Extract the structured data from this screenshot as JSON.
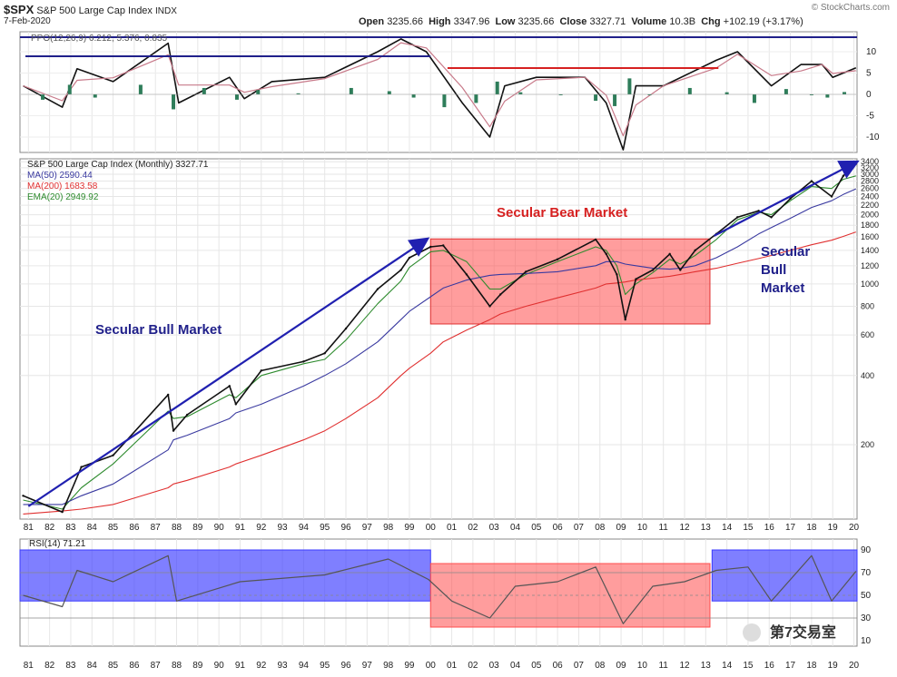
{
  "header": {
    "symbol": "$SPX",
    "name": "S&P 500 Large Cap Index",
    "exchange": "INDX",
    "date": "7-Feb-2020",
    "watermark": "© StockCharts.com",
    "quote": {
      "open_label": "Open",
      "open": "3235.66",
      "high_label": "High",
      "high": "3347.96",
      "low_label": "Low",
      "low": "3235.66",
      "close_label": "Close",
      "close": "3327.71",
      "volume_label": "Volume",
      "volume": "10.3B",
      "chg_label": "Chg",
      "chg": "+102.19 (+3.17%)"
    }
  },
  "ppo_panel": {
    "legend": "PPO(12,26,9) 6.212, 5.376, 0.835",
    "ticks": [
      "10",
      "5",
      "0",
      "-5",
      "-10"
    ]
  },
  "price_panel": {
    "legend": {
      "title": "S&P 500 Large Cap Index (Monthly) 3327.71",
      "ma50": "MA(50) 2590.44",
      "ma200": "MA(200) 1683.58",
      "ema20": "EMA(20) 2949.92"
    },
    "annotations": {
      "bull1": "Secular Bull Market",
      "bear": "Secular Bear Market",
      "bull2_line1": "Secular",
      "bull2_line2": "Bull",
      "bull2_line3": "Market"
    },
    "ticks": [
      "3400",
      "3200",
      "3000",
      "2800",
      "2600",
      "2400",
      "2200",
      "2000",
      "1800",
      "1600",
      "1400",
      "1200",
      "1000",
      "800",
      "600",
      "400",
      "200"
    ]
  },
  "rsi_panel": {
    "legend": "RSI(14) 71.21",
    "ticks": [
      "90",
      "70",
      "50",
      "30",
      "10"
    ]
  },
  "x_labels": [
    "81",
    "82",
    "83",
    "84",
    "85",
    "86",
    "87",
    "88",
    "89",
    "90",
    "91",
    "92",
    "93",
    "94",
    "95",
    "96",
    "97",
    "98",
    "99",
    "00",
    "01",
    "02",
    "03",
    "04",
    "05",
    "06",
    "07",
    "08",
    "09",
    "10",
    "11",
    "12",
    "13",
    "14",
    "15",
    "16",
    "17",
    "18",
    "19",
    "20"
  ],
  "wechat_tag": "第7交易室",
  "chart_data": {
    "type": "line",
    "title": "S&P 500 Large Cap Index (Monthly)",
    "scale": "log",
    "x": [
      1980.75,
      1982.6,
      1983.5,
      1985,
      1987.6,
      1987.85,
      1988.5,
      1990.5,
      1990.8,
      1992,
      1994,
      1995,
      1996,
      1997.5,
      1998.6,
      1999,
      2000.0,
      2000.6,
      2001.7,
      2002.8,
      2003.3,
      2004.5,
      2006,
      2007.8,
      2008.3,
      2008.8,
      2009.2,
      2009.7,
      2010.5,
      2011.3,
      2011.8,
      2012.5,
      2013.5,
      2014.5,
      2015.5,
      2016.1,
      2017,
      2018.0,
      2018.95,
      2019.5,
      2020.1
    ],
    "series": [
      {
        "name": "S&P 500 Large Cap Index",
        "values": [
          120,
          102,
          160,
          180,
          330,
          230,
          270,
          360,
          300,
          420,
          460,
          500,
          640,
          950,
          1150,
          1300,
          1450,
          1470,
          1100,
          800,
          900,
          1130,
          1280,
          1560,
          1350,
          1100,
          700,
          1050,
          1150,
          1350,
          1150,
          1400,
          1650,
          1950,
          2080,
          1950,
          2350,
          2800,
          2400,
          2950,
          3327.71
        ]
      },
      {
        "name": "MA(50)",
        "values": [
          110,
          110,
          120,
          135,
          190,
          210,
          220,
          260,
          275,
          300,
          360,
          400,
          450,
          560,
          700,
          760,
          880,
          960,
          1040,
          1090,
          1100,
          1110,
          1130,
          1200,
          1250,
          1250,
          1220,
          1200,
          1170,
          1160,
          1170,
          1200,
          1300,
          1450,
          1650,
          1760,
          1930,
          2150,
          2300,
          2450,
          2590.44
        ]
      },
      {
        "name": "MA(200)",
        "values": [
          100,
          103,
          105,
          110,
          130,
          135,
          140,
          160,
          165,
          180,
          210,
          230,
          260,
          320,
          400,
          430,
          500,
          560,
          630,
          700,
          740,
          800,
          870,
          960,
          1000,
          1010,
          1020,
          1040,
          1060,
          1080,
          1100,
          1130,
          1170,
          1230,
          1290,
          1330,
          1400,
          1480,
          1550,
          1610,
          1683.58
        ]
      },
      {
        "name": "EMA(20)",
        "values": [
          115,
          105,
          130,
          165,
          280,
          260,
          265,
          330,
          320,
          400,
          450,
          470,
          570,
          820,
          1030,
          1180,
          1380,
          1400,
          1250,
          950,
          950,
          1100,
          1250,
          1450,
          1400,
          1200,
          900,
          1000,
          1120,
          1280,
          1220,
          1330,
          1560,
          1900,
          2050,
          2000,
          2300,
          2650,
          2600,
          2850,
          2949.92
        ]
      }
    ],
    "rsi": {
      "name": "RSI(14)",
      "x": [
        1980.75,
        1982.6,
        1983.3,
        1985,
        1987.6,
        1988,
        1991,
        1995,
        1998,
        1999.9,
        2001,
        2002.8,
        2004,
        2006,
        2007.8,
        2009.1,
        2010.5,
        2012,
        2013.5,
        2015,
        2016.1,
        2018,
        2018.95,
        2020.1
      ],
      "values": [
        50,
        40,
        72,
        62,
        85,
        45,
        62,
        68,
        82,
        64,
        45,
        30,
        58,
        62,
        75,
        25,
        58,
        62,
        72,
        75,
        45,
        85,
        45,
        71.21
      ]
    },
    "ppo": {
      "name": "PPO(12,26,9)",
      "x": [
        1980.75,
        1982.6,
        1983.3,
        1985,
        1987.6,
        1988.1,
        1990.5,
        1991.2,
        1992.5,
        1995,
        1997.5,
        1998.6,
        1999.8,
        2001.5,
        2002.8,
        2003.5,
        2005,
        2007.3,
        2008.3,
        2009.1,
        2009.7,
        2011,
        2013.5,
        2014.5,
        2016.1,
        2017.5,
        2018.5,
        2019,
        2020.1
      ],
      "values": [
        2,
        -3,
        6,
        3,
        12,
        -2,
        4,
        -1,
        3,
        4,
        10,
        13,
        10,
        -2,
        -10,
        2,
        4,
        4,
        -2,
        -13,
        2,
        2,
        8,
        10,
        2,
        7,
        7,
        4,
        6.212
      ]
    },
    "ylabel": "",
    "xlabel": ""
  }
}
